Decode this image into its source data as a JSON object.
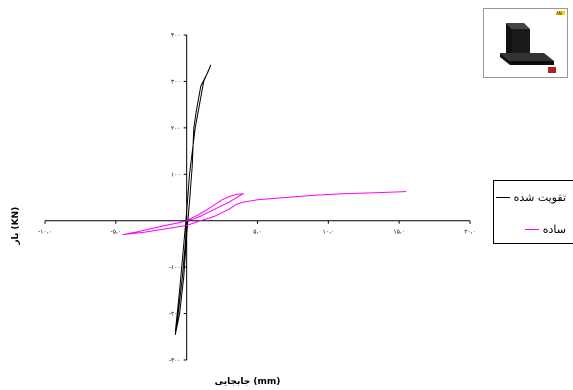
{
  "chart_data": {
    "type": "line",
    "title": "",
    "xlabel": "جابجایی (mm)",
    "ylabel": "بار (KN)",
    "xlim": [
      -10,
      20
    ],
    "ylim": [
      -300,
      400
    ],
    "x_ticks": [
      -10,
      -5,
      0,
      5,
      10,
      15,
      20
    ],
    "x_tick_labels": [
      "-۱۰،۰",
      "-۵،۰",
      "",
      "۵،۰",
      "۱۰،۰",
      "۱۵،۰",
      "۲۰،۰"
    ],
    "y_ticks": [
      -300,
      -200,
      -100,
      0,
      100,
      200,
      300,
      400
    ],
    "y_tick_labels": [
      "-۳۰۰",
      "-۲۰۰",
      "-۱۰۰",
      "",
      "۱۰۰",
      "۲۰۰",
      "۳۰۰",
      "۴۰۰"
    ],
    "legend_position": "right",
    "grid": false,
    "series": [
      {
        "name": "تقویت شده",
        "color": "#000000",
        "x": [
          0,
          -0.1,
          -0.3,
          -0.6,
          -0.8,
          -0.5,
          -0.2,
          0,
          0.2,
          0.4,
          0.5,
          0.7,
          1.0,
          1.5,
          1.7,
          1.2,
          0.6,
          0.2,
          0,
          -0.2,
          -0.5,
          -0.8
        ],
        "y": [
          0,
          -50,
          -120,
          -200,
          -245,
          -200,
          -120,
          -30,
          40,
          120,
          200,
          240,
          290,
          320,
          335,
          300,
          200,
          100,
          20,
          -50,
          -150,
          -240
        ]
      },
      {
        "name": "ساده",
        "color": "#ff00ff",
        "x": [
          0,
          0.3,
          0.8,
          1.5,
          2.0,
          2.5,
          3.0,
          3.5,
          4.0,
          3.8,
          3.0,
          2.0,
          1.0,
          0.5,
          0,
          -0.5,
          -1.5,
          -2.5,
          -3.5,
          -4.2,
          -4.5,
          -4.0,
          -3.0,
          -2.0,
          -1.0,
          0,
          1.0,
          2.0,
          3.0,
          3.5,
          4.0,
          5.0,
          7.0,
          9.0,
          11.0,
          13.0,
          15.0,
          15.5
        ],
        "y": [
          0,
          5,
          12,
          25,
          35,
          45,
          52,
          57,
          58,
          55,
          40,
          25,
          10,
          4,
          0,
          -4,
          -10,
          -17,
          -24,
          -28,
          -30,
          -28,
          -25,
          -20,
          -15,
          -10,
          0,
          10,
          25,
          35,
          40,
          45,
          50,
          55,
          58,
          60,
          62,
          63
        ]
      }
    ]
  },
  "inset": {
    "icon": "structural-plate-3d-icon",
    "logo_text": "AN"
  }
}
